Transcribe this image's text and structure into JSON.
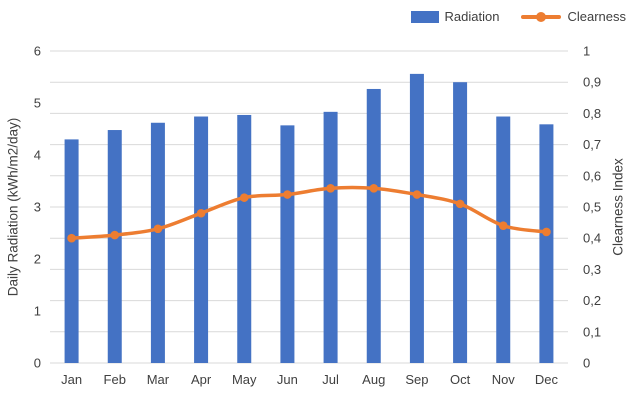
{
  "chart_data": {
    "type": "combo-bar-line",
    "categories": [
      "Jan",
      "Feb",
      "Mar",
      "Apr",
      "May",
      "Jun",
      "Jul",
      "Aug",
      "Sep",
      "Oct",
      "Nov",
      "Dec"
    ],
    "series": [
      {
        "name": "Radiation",
        "type": "bar",
        "axis": "left",
        "color": "#4472C4",
        "values": [
          4.3,
          4.48,
          4.62,
          4.74,
          4.77,
          4.57,
          4.83,
          5.27,
          5.56,
          5.4,
          4.74,
          4.59
        ]
      },
      {
        "name": "Clearness",
        "type": "line",
        "axis": "right",
        "color": "#ED7D31",
        "smooth": true,
        "values": [
          0.4,
          0.41,
          0.43,
          0.48,
          0.53,
          0.54,
          0.56,
          0.56,
          0.54,
          0.51,
          0.44,
          0.42
        ]
      }
    ],
    "title": "",
    "left_axis": {
      "label": "Daily Radiation (kWh/m2/day)",
      "min": 0,
      "max": 6,
      "tick_labels": [
        "0",
        "1",
        "2",
        "3",
        "4",
        "5",
        "6"
      ]
    },
    "right_axis": {
      "label": "Clearness Index",
      "min": 0,
      "max": 1,
      "tick_labels": [
        "0",
        "0,1",
        "0,2",
        "0,3",
        "0,4",
        "0,5",
        "0,6",
        "0,7",
        "0,8",
        "0,9",
        "1"
      ]
    },
    "legend": {
      "position": "top-right",
      "entries": [
        "Radiation",
        "Clearness"
      ]
    },
    "grid": {
      "horizontal": true,
      "vertical": false,
      "color": "#D9D9D9"
    },
    "text_color": "#404040",
    "background": "#FFFFFF"
  }
}
